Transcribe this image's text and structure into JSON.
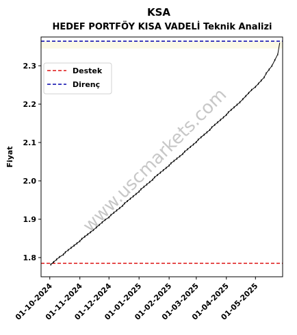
{
  "chart_data": {
    "type": "line",
    "title": "KSA",
    "subtitle": "HEDEF PORTFÖY KISA VADELİ Teknik Analizi",
    "xlabel": "",
    "ylabel": "Fiyat",
    "ylim": [
      1.75,
      2.375
    ],
    "xlim": [
      "2024-09-22",
      "2025-05-29"
    ],
    "y_ticks": [
      1.8,
      1.9,
      2.0,
      2.1,
      2.2,
      2.3
    ],
    "y_tick_labels": [
      "1.8",
      "1.9",
      "2.0",
      "2.1",
      "2.2",
      "2.3"
    ],
    "x_ticks": [
      "2024-10-01",
      "2024-11-01",
      "2024-12-01",
      "2025-01-01",
      "2025-02-01",
      "2025-03-01",
      "2025-04-01",
      "2025-05-01"
    ],
    "x_tick_labels": [
      "01-10-2024",
      "01-11-2024",
      "01-12-2024",
      "01-01-2025",
      "01-02-2025",
      "01-03-2025",
      "01-04-2025",
      "01-05-2025"
    ],
    "grid": false,
    "legend_position": "upper-left",
    "series": [
      {
        "name": "",
        "color": "#000000",
        "points": [
          {
            "x": "2024-10-02",
            "y": 1.782
          },
          {
            "x": "2024-10-15",
            "y": 1.808
          },
          {
            "x": "2024-11-01",
            "y": 1.843
          },
          {
            "x": "2024-11-15",
            "y": 1.872
          },
          {
            "x": "2024-12-01",
            "y": 1.905
          },
          {
            "x": "2024-12-15",
            "y": 1.935
          },
          {
            "x": "2025-01-01",
            "y": 1.972
          },
          {
            "x": "2025-01-15",
            "y": 2.003
          },
          {
            "x": "2025-02-01",
            "y": 2.04
          },
          {
            "x": "2025-02-15",
            "y": 2.07
          },
          {
            "x": "2025-03-01",
            "y": 2.101
          },
          {
            "x": "2025-03-15",
            "y": 2.133
          },
          {
            "x": "2025-04-01",
            "y": 2.172
          },
          {
            "x": "2025-04-15",
            "y": 2.205
          },
          {
            "x": "2025-05-01",
            "y": 2.245
          },
          {
            "x": "2025-05-10",
            "y": 2.27
          },
          {
            "x": "2025-05-18",
            "y": 2.3
          },
          {
            "x": "2025-05-24",
            "y": 2.33
          },
          {
            "x": "2025-05-26",
            "y": 2.36
          }
        ]
      }
    ],
    "hlines": [
      {
        "name": "Destek",
        "value": 1.785,
        "color": "#dd1111",
        "style": "dashed"
      },
      {
        "name": "Direnç",
        "value": 2.364,
        "color": "#0000aa",
        "style": "dashed"
      }
    ],
    "bands": [
      {
        "y0": 2.345,
        "y1": 2.364,
        "color": "#fbf9e6"
      }
    ],
    "watermark": "www.uscmarkets.com"
  }
}
